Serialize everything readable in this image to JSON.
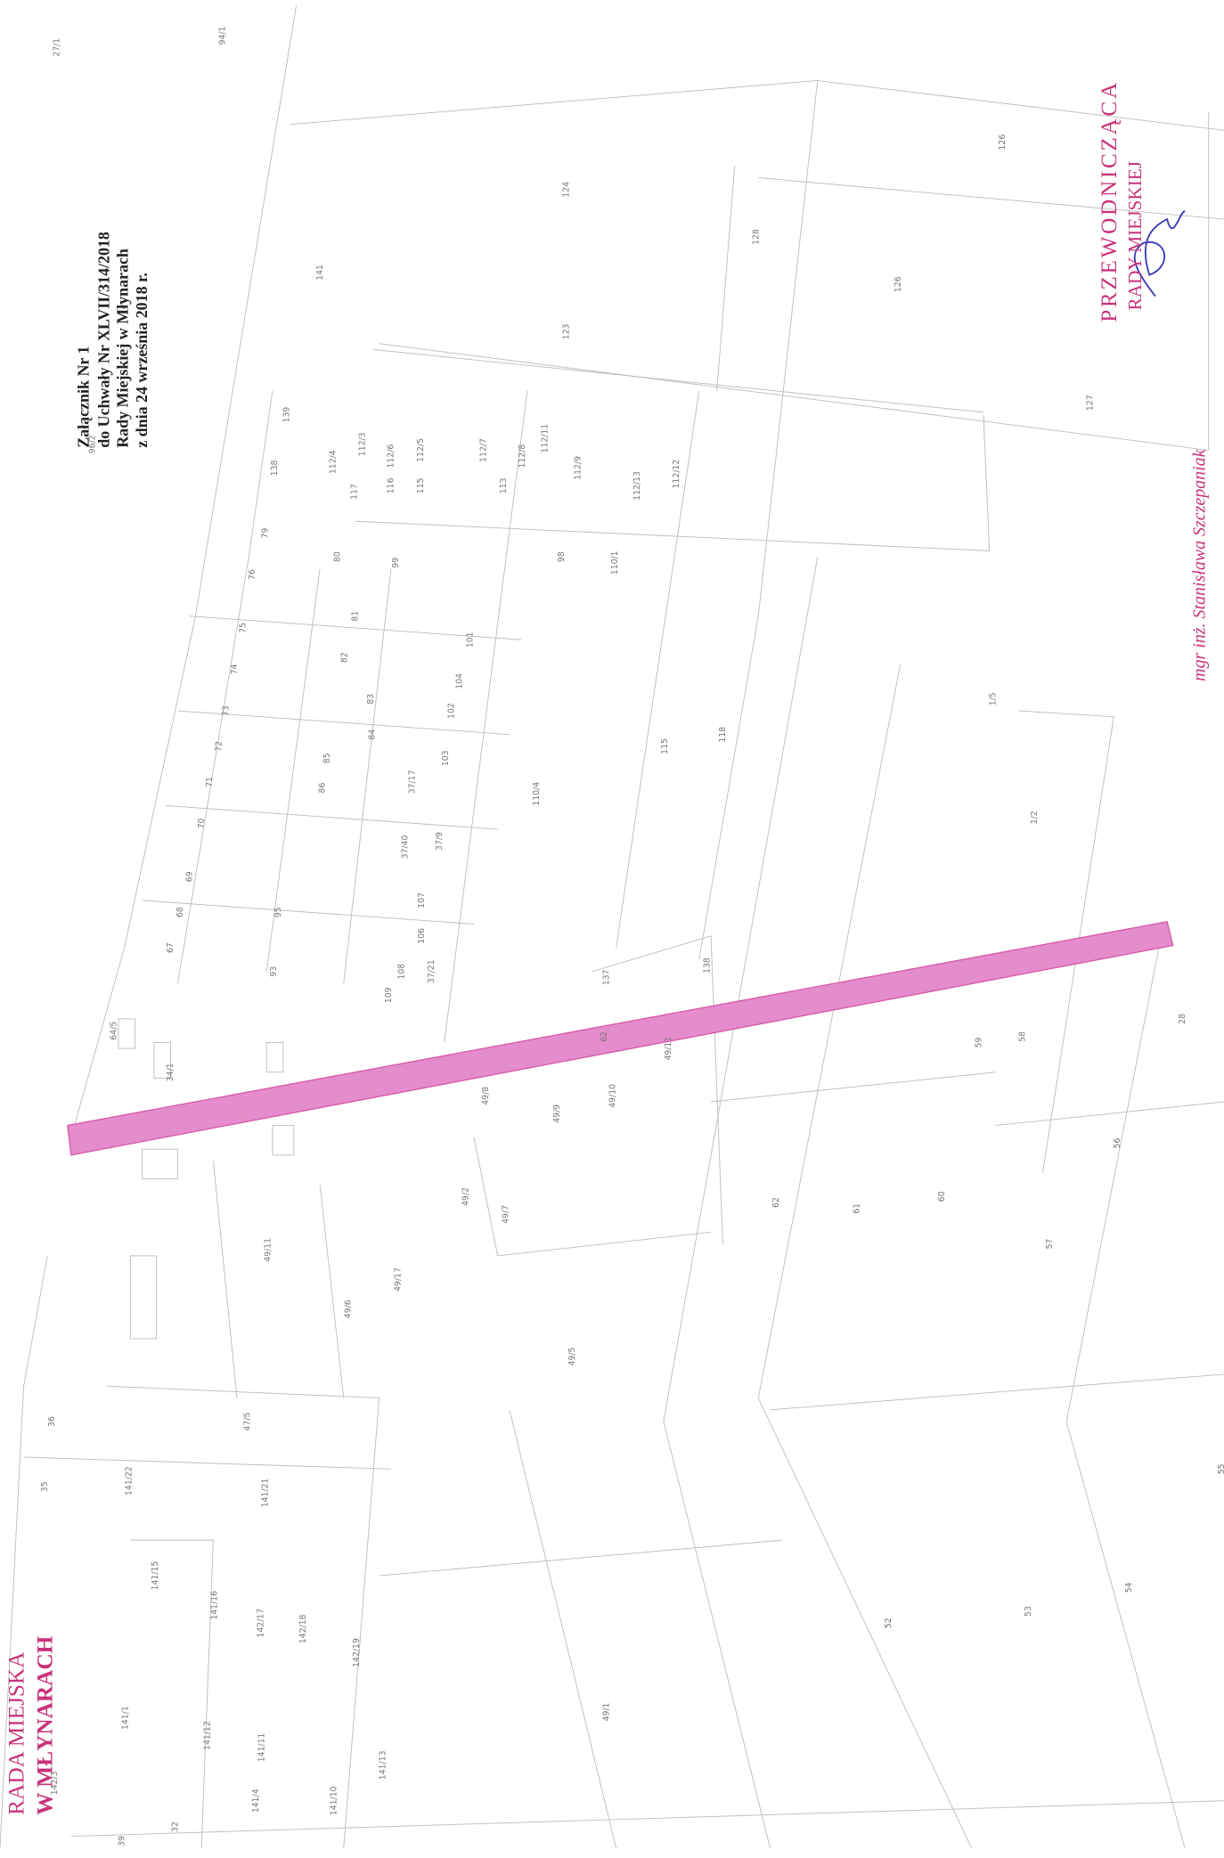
{
  "header": {
    "lines": [
      "Załącznik Nr 1",
      "do Uchwały Nr XLVII/314/2018",
      "Rady Miejskiej w Młynarach",
      "z dnia 24 września 2018 r."
    ]
  },
  "stamp_chair": {
    "title": "PRZEWODNICZĄCA",
    "body": "RADY MIEJSKIEJ",
    "signature": "mgr inż. Stanisława Szczepaniak"
  },
  "stamp_council": {
    "line1": "RADA MIEJSKA",
    "line2": "W MŁYNARACH"
  },
  "highlight": {
    "label": "62",
    "color": "#e48ccc"
  },
  "parcels": [
    {
      "label": "124"
    },
    {
      "label": "123"
    },
    {
      "label": "126"
    },
    {
      "label": "126"
    },
    {
      "label": "141"
    },
    {
      "label": "112/11"
    },
    {
      "label": "139"
    },
    {
      "label": "138"
    },
    {
      "label": "112/4"
    },
    {
      "label": "112/3"
    },
    {
      "label": "112/6"
    },
    {
      "label": "112/5"
    },
    {
      "label": "117"
    },
    {
      "label": "116"
    },
    {
      "label": "115"
    },
    {
      "label": "112/7"
    },
    {
      "label": "112/8"
    },
    {
      "label": "113"
    },
    {
      "label": "112/9"
    },
    {
      "label": "112/13"
    },
    {
      "label": "112/12"
    },
    {
      "label": "79"
    },
    {
      "label": "80"
    },
    {
      "label": "76"
    },
    {
      "label": "99"
    },
    {
      "label": "98"
    },
    {
      "label": "110/1"
    },
    {
      "label": "75"
    },
    {
      "label": "81"
    },
    {
      "label": "82"
    },
    {
      "label": "101"
    },
    {
      "label": "74"
    },
    {
      "label": "83"
    },
    {
      "label": "104"
    },
    {
      "label": "73"
    },
    {
      "label": "84"
    },
    {
      "label": "102"
    },
    {
      "label": "103"
    },
    {
      "label": "115"
    },
    {
      "label": "118"
    },
    {
      "label": "72"
    },
    {
      "label": "85"
    },
    {
      "label": "86"
    },
    {
      "label": "71"
    },
    {
      "label": "110/4"
    },
    {
      "label": "70"
    },
    {
      "label": "69"
    },
    {
      "label": "68"
    },
    {
      "label": "67"
    },
    {
      "label": "95"
    },
    {
      "label": "93"
    },
    {
      "label": "137"
    },
    {
      "label": "138"
    },
    {
      "label": "107"
    },
    {
      "label": "106"
    },
    {
      "label": "108"
    },
    {
      "label": "109"
    },
    {
      "label": "59"
    },
    {
      "label": "58"
    },
    {
      "label": "57"
    },
    {
      "label": "56"
    },
    {
      "label": "55"
    },
    {
      "label": "54"
    },
    {
      "label": "53"
    },
    {
      "label": "52"
    },
    {
      "label": "60"
    },
    {
      "label": "61"
    },
    {
      "label": "62"
    },
    {
      "label": "49/9"
    },
    {
      "label": "49/10"
    },
    {
      "label": "49/11"
    },
    {
      "label": "49/8"
    },
    {
      "label": "49/7"
    },
    {
      "label": "49/2"
    },
    {
      "label": "49/5"
    },
    {
      "label": "49/17"
    },
    {
      "label": "49/11"
    },
    {
      "label": "49/6"
    },
    {
      "label": "47/5"
    },
    {
      "label": "141/22"
    },
    {
      "label": "141/21"
    },
    {
      "label": "141/15"
    },
    {
      "label": "141/16"
    },
    {
      "label": "142/17"
    },
    {
      "label": "142/18"
    },
    {
      "label": "142/19"
    },
    {
      "label": "141/1"
    },
    {
      "label": "141/12"
    },
    {
      "label": "141/11"
    },
    {
      "label": "141/4"
    },
    {
      "label": "141/10"
    },
    {
      "label": "141/13"
    },
    {
      "label": "49/1"
    },
    {
      "label": "36"
    },
    {
      "label": "35"
    },
    {
      "label": "32"
    },
    {
      "label": "142/3"
    },
    {
      "label": "39"
    },
    {
      "label": "37/9"
    },
    {
      "label": "37/21"
    },
    {
      "label": "37/17"
    },
    {
      "label": "37/40"
    },
    {
      "label": "34/1"
    },
    {
      "label": "64/5"
    },
    {
      "label": "96/2",
      "color": "#c8337a"
    },
    {
      "label": "94/1",
      "color": "#c8337a"
    },
    {
      "label": "127"
    },
    {
      "label": "128"
    },
    {
      "label": "1/2"
    },
    {
      "label": "1/5"
    },
    {
      "label": "27/1"
    },
    {
      "label": "28"
    }
  ]
}
